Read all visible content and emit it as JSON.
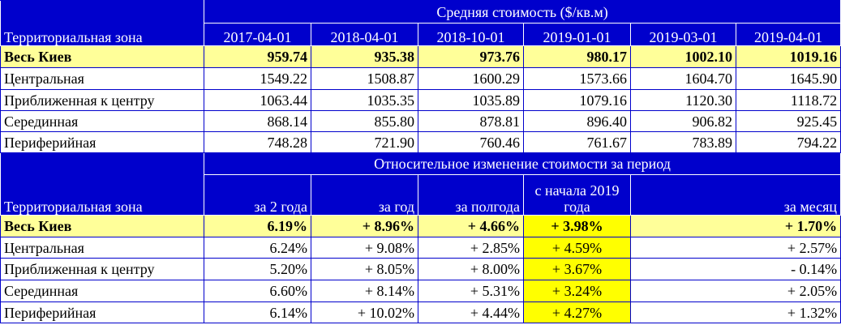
{
  "table1": {
    "title": "Средняя стоимость ($/кв.м)",
    "zone_header": "Территориальная зона",
    "columns": [
      "2017-04-01",
      "2018-04-01",
      "2018-10-01",
      "2019-01-01",
      "2019-03-01",
      "2019-04-01"
    ],
    "rows": [
      {
        "zone": "Весь Киев",
        "values": [
          "959.74",
          "935.38",
          "973.76",
          "980.17",
          "1002.10",
          "1019.16"
        ]
      },
      {
        "zone": "Центральная",
        "values": [
          "1549.22",
          "1508.87",
          "1600.29",
          "1573.66",
          "1604.70",
          "1645.90"
        ]
      },
      {
        "zone": "Приближенная к центру",
        "values": [
          "1063.44",
          "1035.35",
          "1035.89",
          "1079.16",
          "1120.30",
          "1118.72"
        ]
      },
      {
        "zone": "Серединная",
        "values": [
          "868.14",
          "855.80",
          "878.81",
          "896.40",
          "906.82",
          "925.45"
        ]
      },
      {
        "zone": "Периферийная",
        "values": [
          "748.28",
          "721.90",
          "760.46",
          "761.67",
          "783.89",
          "794.22"
        ]
      }
    ]
  },
  "table2": {
    "title": "Относительное изменение стоимости за период",
    "zone_header": "Территориальная зона",
    "columns": [
      "за 2 года",
      "за год",
      "за полгода",
      "с начала 2019 года",
      "за месяц"
    ],
    "rows": [
      {
        "zone": "Весь Киев",
        "values": [
          "6.19%",
          "+ 8.96%",
          "+ 4.66%",
          "+ 3.98%",
          "+ 1.70%"
        ]
      },
      {
        "zone": "Центральная",
        "values": [
          "6.24%",
          "+ 9.08%",
          "+ 2.85%",
          "+ 4.59%",
          "+ 2.57%"
        ]
      },
      {
        "zone": "Приближенная к центру",
        "values": [
          "5.20%",
          "+ 8.05%",
          "+ 8.00%",
          "+ 3.67%",
          "- 0.14%"
        ]
      },
      {
        "zone": "Серединная",
        "values": [
          "6.60%",
          "+ 8.14%",
          "+ 5.31%",
          "+ 3.24%",
          "+ 2.05%"
        ]
      },
      {
        "zone": "Периферийная",
        "values": [
          "6.14%",
          "+ 10.02%",
          "+ 4.44%",
          "+ 4.27%",
          "+ 1.32%"
        ]
      }
    ]
  }
}
